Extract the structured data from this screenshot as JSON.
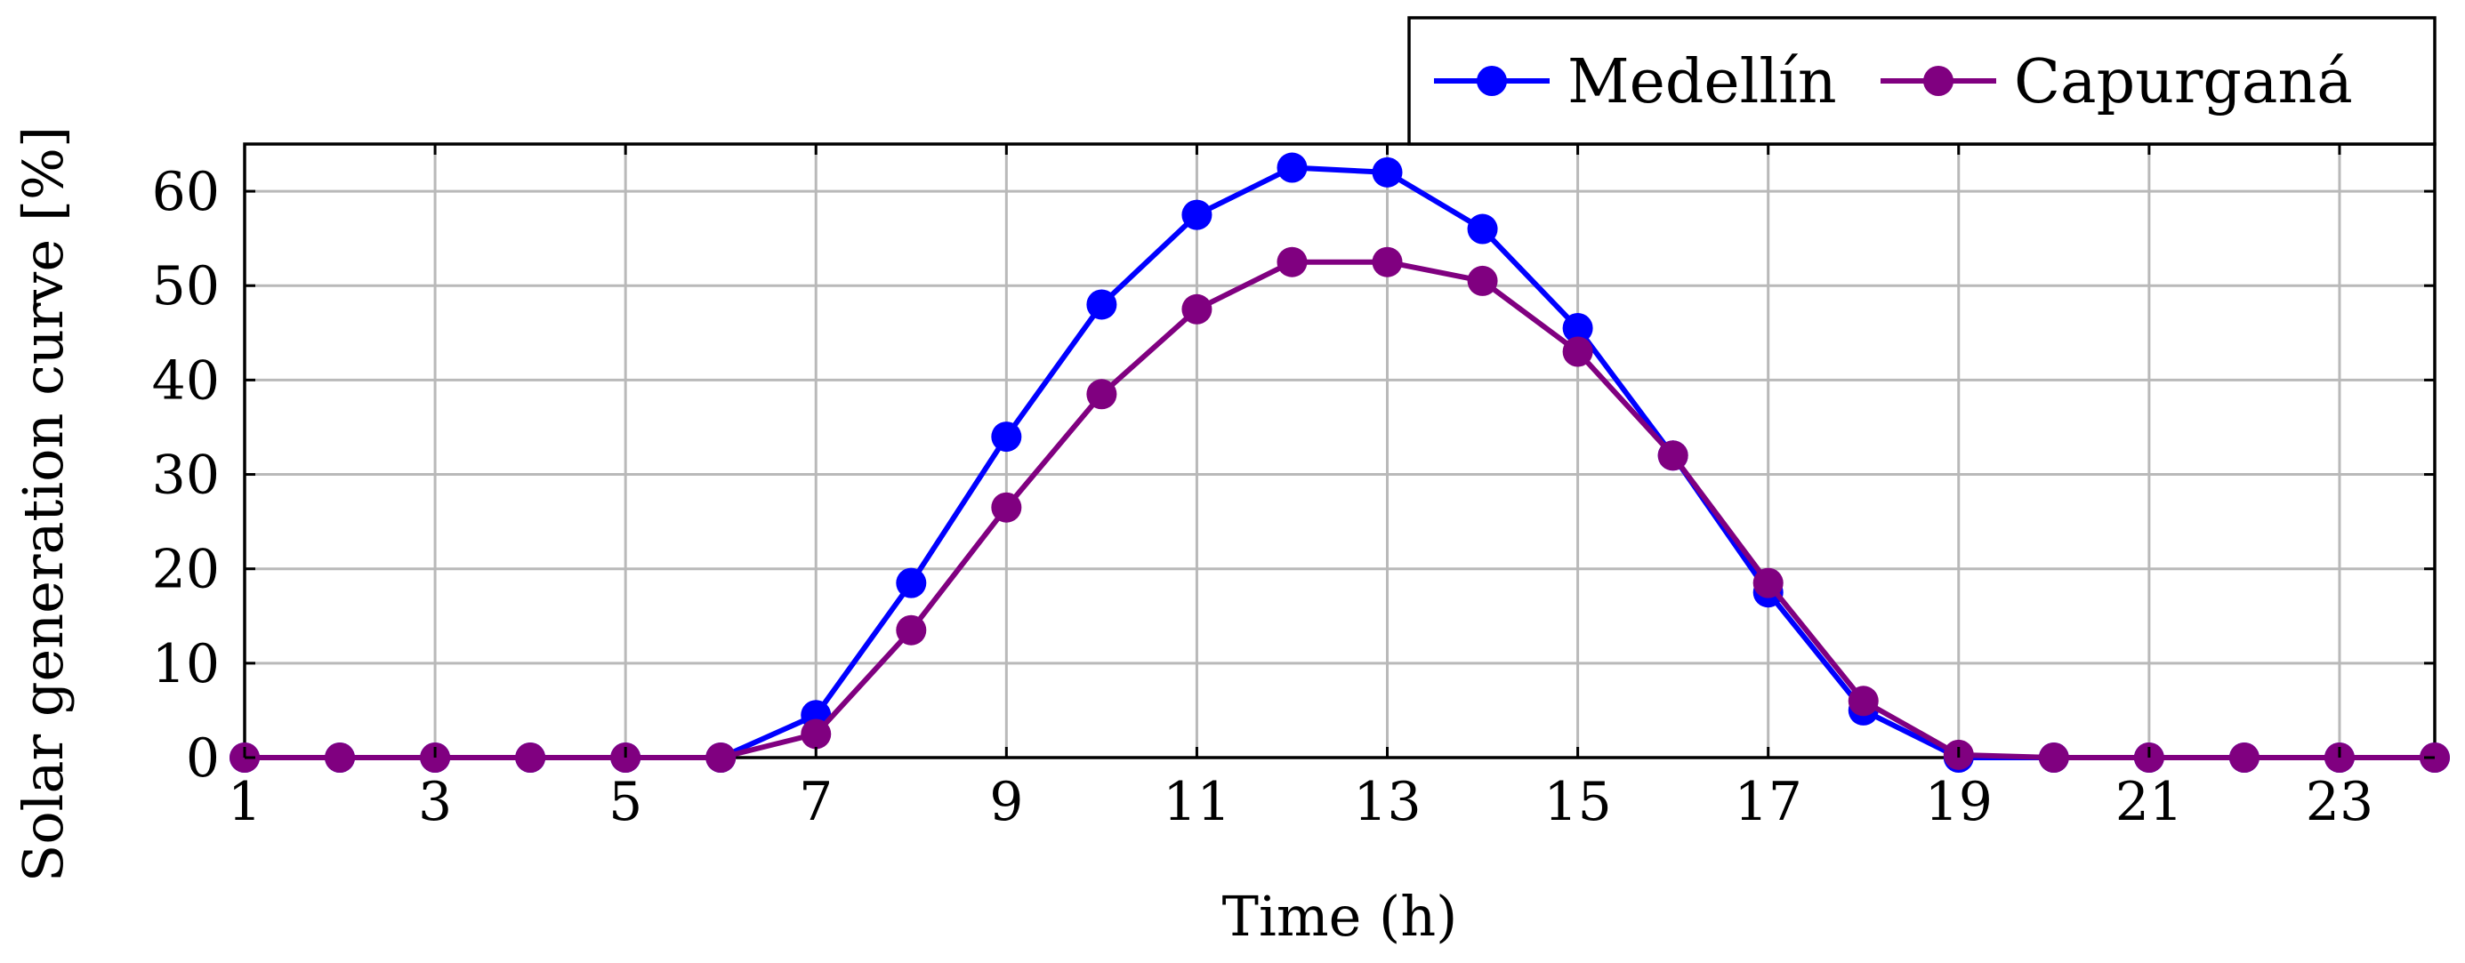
{
  "chart_data": {
    "type": "line",
    "title": "",
    "xlabel": "Time (h)",
    "ylabel": "Solar generation curve [%]",
    "xlim": [
      1,
      24
    ],
    "ylim": [
      0,
      65
    ],
    "xticks": [
      1,
      3,
      5,
      7,
      9,
      11,
      13,
      15,
      17,
      19,
      21,
      23
    ],
    "yticks": [
      0,
      10,
      20,
      30,
      40,
      50,
      60
    ],
    "grid": true,
    "legend_position": "top-right",
    "x": [
      1,
      2,
      3,
      4,
      5,
      6,
      7,
      8,
      9,
      10,
      11,
      12,
      13,
      14,
      15,
      16,
      17,
      18,
      19,
      20,
      21,
      22,
      23,
      24
    ],
    "series": [
      {
        "name": "Medellín",
        "color": "#0000ff",
        "marker": "circle",
        "values": [
          0,
          0,
          0,
          0,
          0,
          0,
          4.5,
          18.5,
          34,
          48,
          57.5,
          62.5,
          62,
          56,
          45.5,
          32,
          17.5,
          5,
          0,
          0,
          0,
          0,
          0,
          0
        ]
      },
      {
        "name": "Capurganá",
        "color": "#800080",
        "marker": "circle",
        "values": [
          0,
          0,
          0,
          0,
          0,
          0,
          2.5,
          13.5,
          26.5,
          38.5,
          47.5,
          52.5,
          52.5,
          50.5,
          43,
          32,
          18.5,
          6,
          0.3,
          0,
          0,
          0,
          0,
          0
        ]
      }
    ]
  }
}
